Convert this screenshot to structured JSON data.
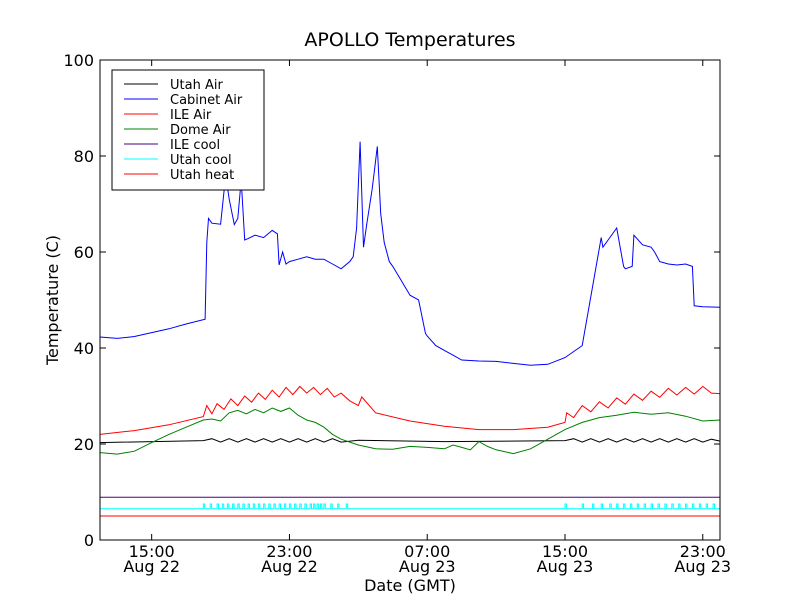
{
  "chart_data": {
    "type": "line",
    "title": "APOLLO Temperatures",
    "xlabel": "Date (GMT)",
    "ylabel": "Temperature (C)",
    "x_unit": "hours since Aug 22 12:00",
    "xlim": [
      0,
      36
    ],
    "ylim": [
      0,
      100
    ],
    "y_ticks": [
      0,
      20,
      40,
      60,
      80,
      100
    ],
    "x_ticks": [
      {
        "x": 3,
        "label_time": "15:00",
        "label_date": "Aug 22"
      },
      {
        "x": 11,
        "label_time": "23:00",
        "label_date": "Aug 22"
      },
      {
        "x": 19,
        "label_time": "07:00",
        "label_date": "Aug 23"
      },
      {
        "x": 27,
        "label_time": "15:00",
        "label_date": "Aug 23"
      },
      {
        "x": 35,
        "label_time": "23:00",
        "label_date": "Aug 23"
      }
    ],
    "legend_position": "top-left",
    "series": [
      {
        "name": "Utah Air",
        "color": "#000000",
        "x": [
          0,
          6,
          6.5,
          7,
          7.5,
          8,
          8.5,
          9,
          9.5,
          10,
          10.5,
          11,
          11.5,
          12,
          12.5,
          13,
          13.5,
          14,
          15,
          20,
          27,
          27.5,
          28,
          28.5,
          29,
          29.5,
          30,
          30.5,
          31,
          31.5,
          32,
          32.5,
          33,
          33.5,
          34,
          34.5,
          35,
          35.5,
          36
        ],
        "y": [
          20.3,
          20.7,
          21.1,
          20.4,
          21.1,
          20.4,
          21.1,
          20.4,
          21.1,
          20.4,
          21.1,
          20.4,
          21.1,
          20.4,
          21.1,
          20.4,
          21.1,
          20.4,
          20.8,
          20.5,
          20.7,
          21.1,
          20.4,
          21.1,
          20.4,
          21.1,
          20.4,
          21.1,
          20.4,
          21.1,
          20.4,
          21.1,
          20.4,
          21.1,
          20.4,
          21.1,
          20.4,
          21.0,
          20.6
        ]
      },
      {
        "name": "Cabinet Air",
        "color": "#0000ff",
        "x": [
          0,
          1,
          2,
          3,
          4,
          5,
          6.1,
          6.2,
          6.3,
          6.5,
          7,
          7.3,
          7.5,
          7.8,
          8,
          8.2,
          8.4,
          8.6,
          9,
          9.5,
          10,
          10.3,
          10.4,
          10.6,
          10.8,
          11,
          11.5,
          12,
          12.5,
          13,
          13.5,
          14,
          14.5,
          14.7,
          14.9,
          15.1,
          15.3,
          15.5,
          15.8,
          16,
          16.1,
          16.3,
          16.5,
          16.8,
          17,
          17.5,
          18,
          18.5,
          18.9,
          19,
          19.5,
          20,
          20.5,
          21,
          22,
          23,
          24,
          25,
          26,
          27,
          28,
          29.1,
          29.2,
          29.5,
          30,
          30.4,
          30.5,
          30.9,
          31,
          31.5,
          32,
          32.2,
          32.5,
          33,
          33.5,
          34,
          34.4,
          34.5,
          35,
          36
        ],
        "y": [
          42.3,
          42,
          42.4,
          43.2,
          44,
          45,
          46,
          62,
          67,
          66,
          65.8,
          76,
          71,
          65.7,
          67,
          75,
          62.5,
          62.8,
          63.5,
          63,
          64.5,
          63.8,
          57.3,
          60,
          57.5,
          58,
          58.5,
          59,
          58.5,
          58.5,
          57.5,
          56.5,
          58,
          59,
          65,
          83,
          61,
          66,
          73,
          79,
          82,
          68,
          62,
          58,
          57,
          54,
          51,
          50,
          43,
          42.5,
          40.5,
          39.5,
          38.5,
          37.5,
          37.3,
          37.2,
          36.8,
          36.4,
          36.6,
          38,
          40.5,
          63,
          61,
          62.5,
          65,
          57,
          56.5,
          57,
          63.5,
          61.5,
          61,
          60,
          58,
          57.5,
          57.3,
          57.5,
          57,
          48.8,
          48.6,
          48.5
        ]
      },
      {
        "name": "ILE Air",
        "color": "#ff0000",
        "x": [
          0,
          2,
          4,
          6,
          6.2,
          6.5,
          6.8,
          7.2,
          7.6,
          8,
          8.4,
          8.8,
          9.2,
          9.6,
          10,
          10.4,
          10.8,
          11.2,
          11.6,
          12,
          12.4,
          12.8,
          13.2,
          13.6,
          14,
          14.5,
          15,
          15.2,
          16,
          18,
          20,
          22,
          24,
          26,
          27,
          27.1,
          27.5,
          28,
          28.5,
          29,
          29.5,
          30,
          30.5,
          31,
          31.5,
          32,
          32.5,
          33,
          33.5,
          34,
          34.5,
          35,
          35.5,
          36
        ],
        "y": [
          22,
          22.8,
          24,
          25.7,
          28,
          26.3,
          28.4,
          27.2,
          29.4,
          28,
          30,
          28.7,
          30.6,
          29.3,
          31.2,
          29.8,
          31.8,
          30.3,
          32,
          30.6,
          31.8,
          30.3,
          31.6,
          29.8,
          30.6,
          29,
          28,
          29.8,
          26.5,
          24.8,
          23.7,
          23,
          23,
          23.5,
          24.5,
          26.5,
          25.5,
          28,
          26.7,
          28.8,
          27.5,
          29.6,
          28.3,
          30.4,
          29.1,
          31,
          29.7,
          31.6,
          30.2,
          31.8,
          30.4,
          32,
          30.6,
          30.5
        ]
      },
      {
        "name": "Dome Air",
        "color": "#008000",
        "x": [
          0,
          1,
          2,
          3,
          4,
          5,
          6,
          6.5,
          7,
          7.5,
          8,
          8.5,
          9,
          9.5,
          10,
          10.5,
          11,
          11.5,
          12,
          12.5,
          13,
          13.5,
          14,
          15,
          16,
          17,
          18,
          19,
          20,
          20.5,
          21,
          21.5,
          22,
          22.5,
          23,
          24,
          25,
          26,
          27,
          28,
          29,
          30,
          31,
          32,
          33,
          34,
          35,
          36
        ],
        "y": [
          18.2,
          17.9,
          18.5,
          20.3,
          22,
          23.5,
          25,
          25.2,
          24.8,
          26.5,
          27,
          26.3,
          27.2,
          26.5,
          27.5,
          26.8,
          27.5,
          26,
          25,
          24.5,
          23.5,
          22,
          21,
          19.8,
          19,
          18.9,
          19.5,
          19.3,
          19,
          19.8,
          19.3,
          18.8,
          20.5,
          19.5,
          18.8,
          18,
          19,
          21,
          23,
          24.5,
          25.5,
          26,
          26.6,
          26.2,
          26.5,
          25.8,
          24.8,
          25
        ]
      },
      {
        "name": "ILE cool",
        "color": "#4b0082",
        "x": [
          0,
          36
        ],
        "y": [
          8.9,
          8.9
        ]
      },
      {
        "name": "Utah cool",
        "color": "#00ffff",
        "x": [
          0,
          36
        ],
        "y": [
          6.5,
          6.5
        ],
        "pulse_y": 7.5,
        "pulses": [
          6.0,
          6.4,
          6.8,
          7.1,
          7.4,
          7.7,
          8.0,
          8.3,
          8.6,
          8.9,
          9.2,
          9.5,
          9.8,
          10.1,
          10.4,
          10.7,
          11.0,
          11.3,
          11.6,
          11.9,
          12.2,
          12.4,
          12.6,
          12.8,
          13.0,
          13.4,
          13.8,
          14.3,
          27.0,
          28.0,
          28.6,
          29.1,
          29.6,
          30.0,
          30.4,
          30.8,
          31.2,
          31.6,
          32.0,
          32.4,
          32.8,
          33.2,
          33.6,
          34.0,
          34.4,
          34.8,
          35.2,
          35.6,
          36.0
        ]
      },
      {
        "name": "Utah heat",
        "color": "#ff0000",
        "x": [
          0,
          36
        ],
        "y": [
          5.0,
          5.0
        ]
      }
    ]
  }
}
